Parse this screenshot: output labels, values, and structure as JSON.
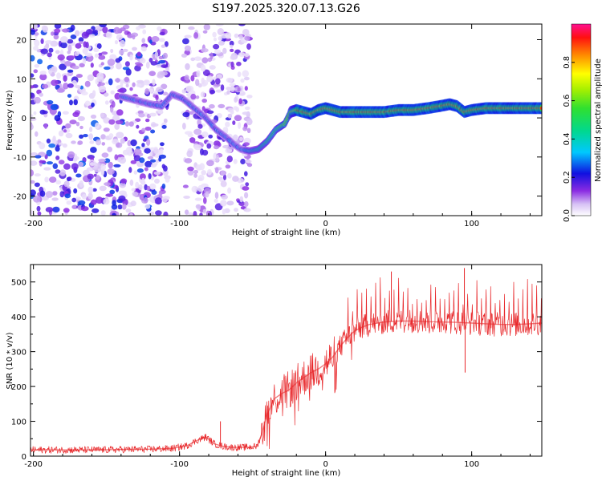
{
  "chart_data": [
    {
      "type": "heatmap",
      "title": "S197.2025.320.07.13.G26",
      "xlabel": "Height of straight line (km)",
      "ylabel": "Frequency (Hz)",
      "xlim": [
        -202,
        148
      ],
      "ylim": [
        -25,
        24
      ],
      "xticks": [
        -200,
        -100,
        0,
        100
      ],
      "xtick_labels": [
        "-200",
        "-100",
        "0",
        "100"
      ],
      "yticks": [
        -20,
        -10,
        0,
        10,
        20
      ],
      "ytick_labels": [
        "-20",
        "-10",
        "0",
        "10",
        "20"
      ],
      "ridge": {
        "x": [
          -140,
          -130,
          -120,
          -112,
          -105,
          -98,
          -90,
          -82,
          -75,
          -68,
          -62,
          -58,
          -52,
          -46,
          -40,
          -34,
          -28,
          -24,
          -20,
          -15,
          -10,
          -5,
          0,
          5,
          10,
          20,
          30,
          40,
          50,
          60,
          70,
          78,
          85,
          90,
          95,
          100,
          110,
          120,
          130,
          140,
          148
        ],
        "y": [
          5.5,
          4.5,
          3.5,
          3,
          6,
          5,
          2.5,
          0,
          -3,
          -5,
          -7,
          -8,
          -8.5,
          -8,
          -6,
          -3,
          -1.5,
          1.5,
          2,
          1.5,
          1,
          2,
          2.5,
          2,
          1.5,
          1.5,
          1.5,
          1.5,
          2,
          2,
          2.5,
          3,
          3.5,
          3,
          1.5,
          2,
          2.5,
          2.5,
          2.5,
          2.5,
          2.5
        ]
      },
      "noise_regions": [
        [
          -202,
          -108
        ],
        [
          -97,
          -52
        ]
      ],
      "colorbar": {
        "label": "Normalized spectral amplitude",
        "range": [
          0,
          1
        ],
        "ticks": [
          0,
          0.2,
          0.4,
          0.6,
          0.8
        ],
        "tick_labels": [
          "0.0",
          "0.2",
          "0.4",
          "0.6",
          "0.8"
        ]
      }
    },
    {
      "type": "line",
      "xlabel": "Height of straight line (km)",
      "ylabel": "SNR (10 * v/v)",
      "xlim": [
        -202,
        148
      ],
      "ylim": [
        0,
        550
      ],
      "xticks": [
        -200,
        -100,
        0,
        100
      ],
      "xtick_labels": [
        "-200",
        "-100",
        "0",
        "100"
      ],
      "yticks": [
        0,
        100,
        200,
        300,
        400,
        500
      ],
      "ytick_labels": [
        "0",
        "100",
        "200",
        "300",
        "400",
        "500"
      ],
      "color": "#e8282b",
      "series": [
        {
          "name": "SNR",
          "x": [
            -202,
            -180,
            -160,
            -140,
            -120,
            -105,
            -95,
            -88,
            -82,
            -76,
            -70,
            -64,
            -58,
            -52,
            -47,
            -44,
            -40,
            -35,
            -30,
            -25,
            -20,
            -15,
            -10,
            -5,
            0,
            5,
            10,
            15,
            20,
            25,
            30,
            40,
            50,
            60,
            70,
            80,
            90,
            100,
            110,
            120,
            130,
            140,
            148
          ],
          "values": [
            18,
            18,
            18,
            19,
            20,
            22,
            30,
            45,
            55,
            35,
            28,
            25,
            25,
            26,
            28,
            60,
            120,
            165,
            180,
            190,
            210,
            225,
            240,
            250,
            265,
            285,
            315,
            340,
            360,
            370,
            378,
            385,
            388,
            388,
            386,
            385,
            384,
            382,
            380,
            378,
            378,
            380,
            382
          ]
        }
      ],
      "spikes": [
        {
          "x": 45,
          "y": 530
        },
        {
          "x": 95,
          "y": 540
        },
        {
          "x": 95.5,
          "y": 240
        },
        {
          "x": -72,
          "y": 100
        }
      ]
    }
  ]
}
